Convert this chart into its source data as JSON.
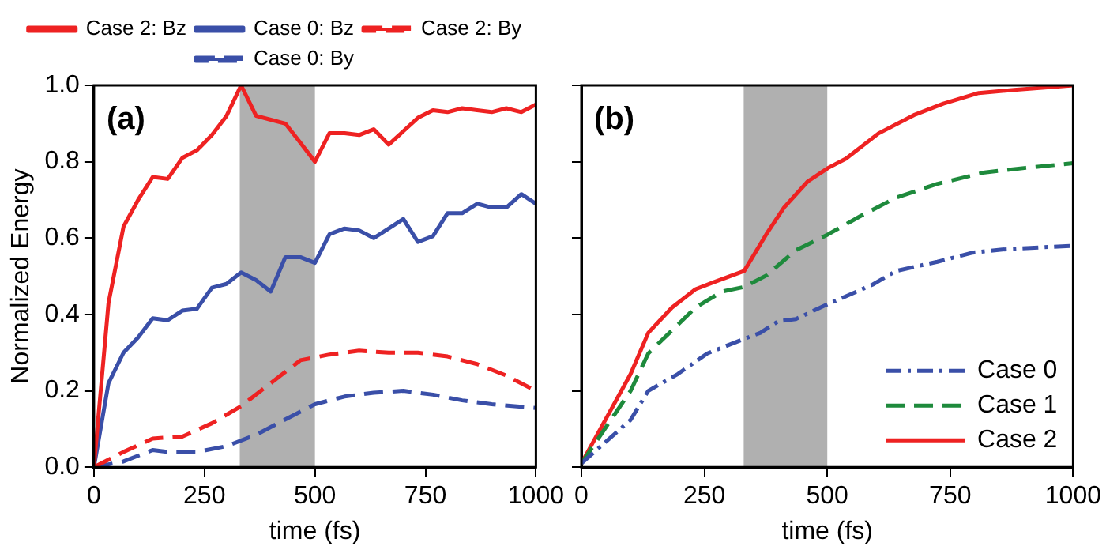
{
  "chart_data": [
    {
      "type": "line",
      "title": "(a)",
      "xlabel": "time (fs)",
      "ylabel": "Normalized Energy",
      "xlim": [
        0,
        1000
      ],
      "ylim": [
        0,
        1
      ],
      "xticks": [
        0,
        250,
        500,
        750,
        1000
      ],
      "yticks": [
        {
          "value": 0,
          "label": "0.0"
        },
        0.2,
        0.4,
        0.6,
        0.8,
        {
          "value": 1,
          "label": "1.0"
        }
      ],
      "legend": "top",
      "marker": "none",
      "bands": [
        {
          "axis": "x",
          "from": 330,
          "to": 500,
          "color": "#b0b0b0"
        }
      ],
      "series": [
        {
          "name": "Case 2: Bz",
          "color": "#ee2222",
          "line_style": "solid",
          "x": [
            0,
            33,
            67,
            100,
            133,
            167,
            200,
            233,
            267,
            300,
            333,
            367,
            400,
            433,
            467,
            500,
            533,
            567,
            600,
            633,
            667,
            700,
            733,
            767,
            800,
            833,
            867,
            900,
            933,
            967,
            1000
          ],
          "values": [
            0,
            0.43,
            0.63,
            0.7,
            0.76,
            0.755,
            0.81,
            0.83,
            0.87,
            0.92,
            1.0,
            0.92,
            0.91,
            0.9,
            0.85,
            0.8,
            0.875,
            0.875,
            0.87,
            0.885,
            0.845,
            0.88,
            0.915,
            0.935,
            0.93,
            0.94,
            0.935,
            0.93,
            0.94,
            0.93,
            0.95
          ]
        },
        {
          "name": "Case 0: Bz",
          "color": "#3a4fa8",
          "line_style": "solid",
          "x": [
            0,
            33,
            67,
            100,
            133,
            167,
            200,
            233,
            267,
            300,
            333,
            367,
            400,
            433,
            467,
            500,
            533,
            567,
            600,
            633,
            667,
            700,
            733,
            767,
            800,
            833,
            867,
            900,
            933,
            967,
            1000
          ],
          "values": [
            0,
            0.22,
            0.3,
            0.34,
            0.39,
            0.385,
            0.41,
            0.415,
            0.47,
            0.48,
            0.51,
            0.49,
            0.46,
            0.55,
            0.55,
            0.535,
            0.61,
            0.625,
            0.62,
            0.6,
            0.625,
            0.65,
            0.59,
            0.605,
            0.665,
            0.665,
            0.69,
            0.68,
            0.68,
            0.715,
            0.69
          ]
        },
        {
          "name": "Case 2: By",
          "color": "#ee2222",
          "line_style": "dashed",
          "x": [
            0,
            67,
            133,
            200,
            267,
            333,
            400,
            467,
            533,
            600,
            667,
            733,
            800,
            867,
            933,
            1000
          ],
          "values": [
            0,
            0.04,
            0.075,
            0.08,
            0.115,
            0.16,
            0.22,
            0.28,
            0.295,
            0.305,
            0.3,
            0.3,
            0.29,
            0.27,
            0.24,
            0.2
          ]
        },
        {
          "name": "Case 0: By",
          "color": "#3a4fa8",
          "line_style": "dashed",
          "x": [
            0,
            67,
            133,
            167,
            233,
            300,
            367,
            433,
            500,
            567,
            633,
            700,
            767,
            833,
            900,
            1000
          ],
          "values": [
            0,
            0.015,
            0.045,
            0.04,
            0.04,
            0.055,
            0.085,
            0.125,
            0.165,
            0.185,
            0.195,
            0.2,
            0.19,
            0.175,
            0.165,
            0.155
          ]
        }
      ]
    },
    {
      "type": "line",
      "title": "(b)",
      "xlabel": "time (fs)",
      "xlim": [
        0,
        1000
      ],
      "ylim": [
        0,
        1
      ],
      "xticks": [
        0,
        250,
        500,
        750,
        1000
      ],
      "yticks": [
        0.0,
        0.2,
        0.4,
        0.6,
        0.8,
        1.0
      ],
      "tick_labels": "x",
      "legend": "bottom right",
      "marker": "none",
      "bands": [
        {
          "axis": "x",
          "from": 330,
          "to": 500,
          "color": "#b0b0b0"
        }
      ],
      "series": [
        {
          "name": "Case 0",
          "color": "#3a4fa8",
          "line_style": "dashdot",
          "x": [
            0,
            100,
            136,
            196,
            256,
            331,
            364,
            400,
            436,
            496,
            592,
            640,
            724,
            796,
            856,
            940,
            1000
          ],
          "values": [
            0.01,
            0.124,
            0.2,
            0.244,
            0.298,
            0.336,
            0.352,
            0.382,
            0.388,
            0.424,
            0.478,
            0.514,
            0.538,
            0.562,
            0.57,
            0.576,
            0.58
          ]
        },
        {
          "name": "Case 1",
          "color": "#1e8a3c",
          "line_style": "dashed",
          "x": [
            0,
            100,
            136,
            184,
            232,
            286,
            331,
            376,
            436,
            502,
            568,
            640,
            724,
            820,
            904,
            1000
          ],
          "values": [
            0.01,
            0.2,
            0.298,
            0.358,
            0.418,
            0.46,
            0.472,
            0.502,
            0.568,
            0.61,
            0.658,
            0.706,
            0.742,
            0.772,
            0.784,
            0.796
          ]
        },
        {
          "name": "Case 2",
          "color": "#ee2222",
          "line_style": "solid",
          "x": [
            0,
            100,
            136,
            184,
            232,
            268,
            331,
            376,
            412,
            460,
            502,
            538,
            604,
            676,
            736,
            808,
            880,
            1000
          ],
          "values": [
            0.01,
            0.244,
            0.352,
            0.418,
            0.466,
            0.484,
            0.514,
            0.61,
            0.68,
            0.748,
            0.784,
            0.808,
            0.874,
            0.922,
            0.952,
            0.98,
            0.988,
            1.0
          ]
        }
      ]
    }
  ]
}
